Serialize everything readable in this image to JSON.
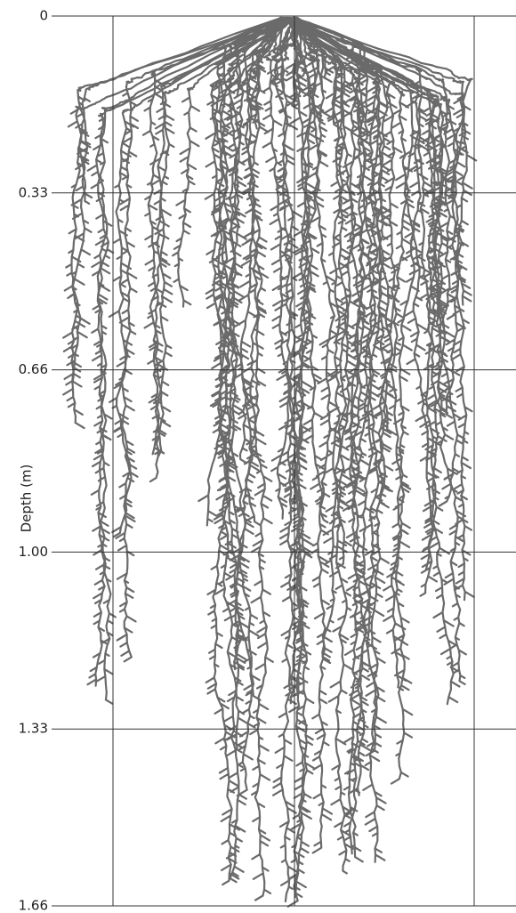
{
  "chart_data": {
    "type": "root-profile",
    "ylabel": "Depth (m)",
    "ylim": [
      0,
      1.66
    ],
    "y_inverted": true,
    "yticks": [
      0,
      0.33,
      0.66,
      {
        "value": 1,
        "label": "1.00"
      },
      1.33,
      1.66
    ],
    "grid": true
  }
}
